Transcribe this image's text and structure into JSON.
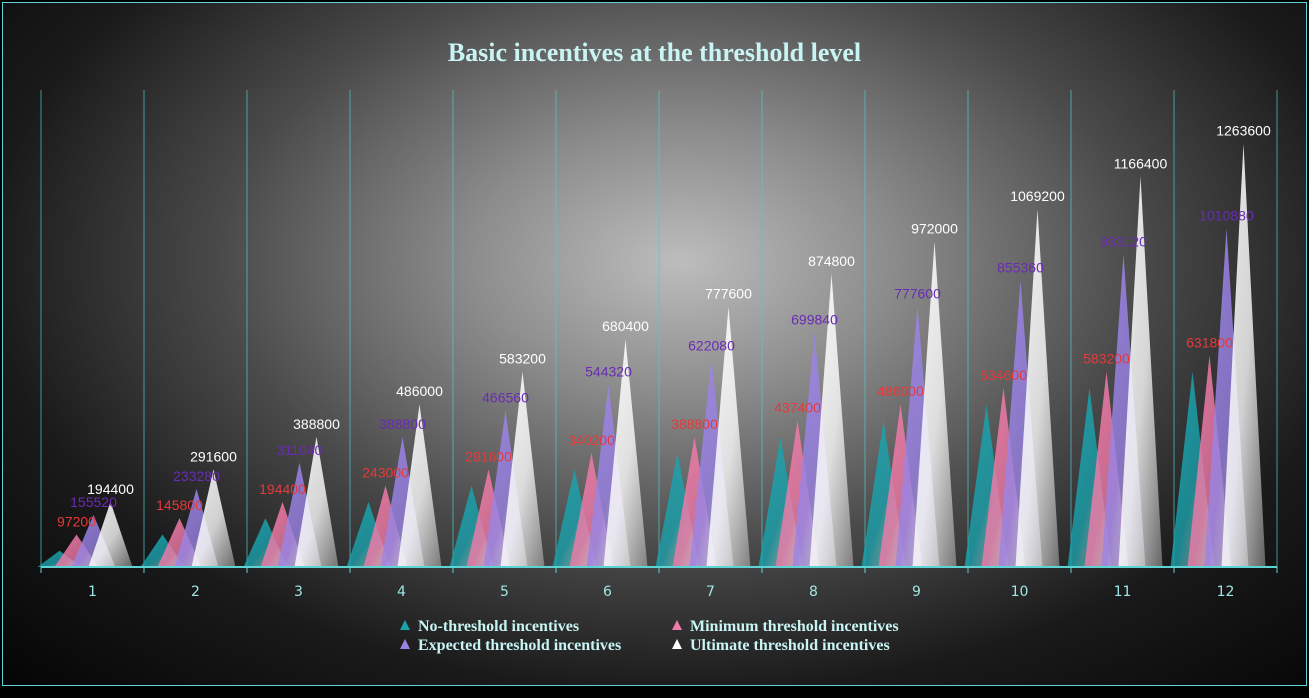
{
  "chart_data": {
    "type": "bar",
    "title": "Basic incentives at the threshold level",
    "xlabel": "",
    "ylabel": "",
    "ylim": [
      0,
      1400000
    ],
    "grid": true,
    "legend_position": "bottom",
    "categories": [
      "1",
      "2",
      "3",
      "4",
      "5",
      "6",
      "7",
      "8",
      "9",
      "10",
      "11",
      "12"
    ],
    "series": [
      {
        "name": "No-threshold incentives",
        "color": "#1aa2ad",
        "labelColor": "",
        "values": [
          48600,
          97200,
          145800,
          194400,
          243000,
          291600,
          340200,
          388800,
          437400,
          486000,
          534600,
          583200
        ]
      },
      {
        "name": "Minimum threshold incentives",
        "color": "#f07aa8",
        "labelColor": "#e8383a",
        "values": [
          97200,
          145800,
          194400,
          243000,
          291600,
          340200,
          388800,
          437400,
          486000,
          534600,
          583200,
          631800
        ]
      },
      {
        "name": "Expected threshold incentives",
        "color": "#9b83e6",
        "labelColor": "#6a2bb5",
        "values": [
          155520,
          233280,
          311040,
          388800,
          466560,
          544320,
          622080,
          699840,
          777600,
          855360,
          933120,
          1010880
        ]
      },
      {
        "name": "Ultimate threshold incentives",
        "color": "#ffffff",
        "labelColor": "#ffffff",
        "values": [
          194400,
          291600,
          388800,
          486000,
          583200,
          680400,
          777600,
          874800,
          972000,
          1069200,
          1166400,
          1263600
        ]
      }
    ]
  }
}
